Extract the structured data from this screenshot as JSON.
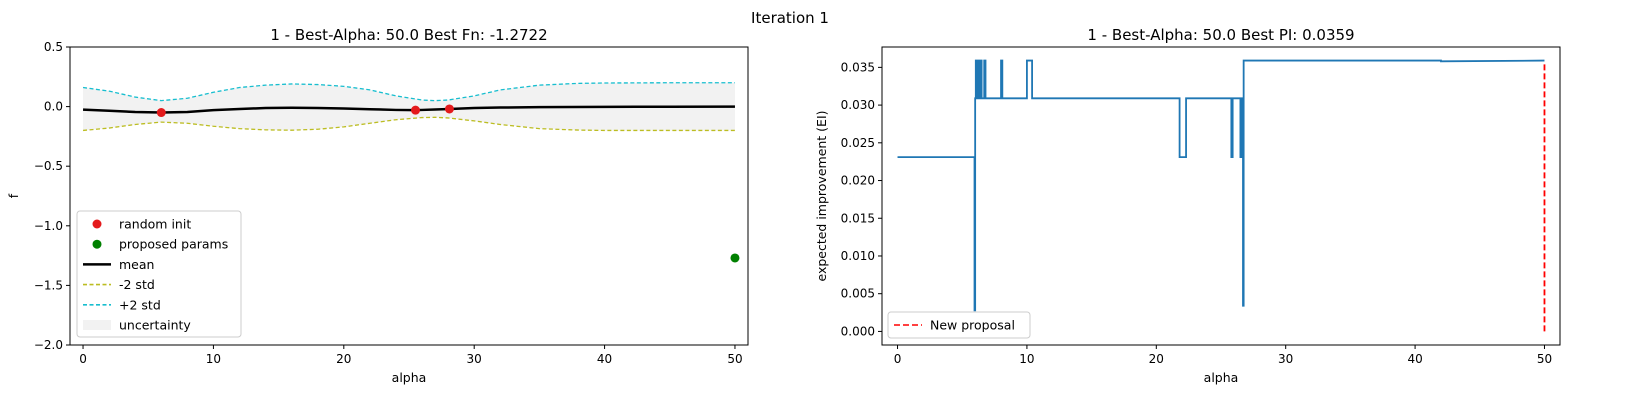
{
  "figure": {
    "suptitle": "Iteration 1"
  },
  "chart_data": [
    {
      "type": "line",
      "title": "1 - Best-Alpha: 50.0 Best Fn: -1.2722",
      "xlabel": "alpha",
      "ylabel": "f",
      "xlim": [
        -1,
        51
      ],
      "ylim": [
        -2.0,
        0.5
      ],
      "xticks": [
        0,
        10,
        20,
        30,
        40,
        50
      ],
      "yticks": [
        -2.0,
        -1.5,
        -1.0,
        -0.5,
        0.0,
        0.5
      ],
      "xtick_labels": [
        "0",
        "10",
        "20",
        "30",
        "40",
        "50"
      ],
      "ytick_labels": [
        "−2.0",
        "−1.5",
        "−1.0",
        "−0.5",
        "0.0",
        "0.5"
      ],
      "legend_position": "lower-left",
      "series": [
        {
          "name": "random init",
          "kind": "scatter",
          "color": "#e41a1c",
          "x": [
            6.0,
            25.5,
            28.1
          ],
          "y": [
            -0.05,
            -0.03,
            -0.02
          ]
        },
        {
          "name": "proposed params",
          "kind": "scatter",
          "color": "#008000",
          "x": [
            50.0
          ],
          "y": [
            -1.27
          ]
        },
        {
          "name": "mean",
          "kind": "line",
          "color": "#000000",
          "x": [
            0,
            2,
            4,
            6,
            8,
            10,
            12,
            14,
            16,
            18,
            20,
            22,
            24,
            25.5,
            26,
            27,
            28.1,
            30,
            32,
            35,
            40,
            45,
            50
          ],
          "y": [
            -0.025,
            -0.035,
            -0.045,
            -0.05,
            -0.045,
            -0.03,
            -0.02,
            -0.012,
            -0.01,
            -0.012,
            -0.016,
            -0.022,
            -0.028,
            -0.03,
            -0.028,
            -0.024,
            -0.02,
            -0.012,
            -0.008,
            -0.004,
            -0.002,
            -0.001,
            0.0
          ]
        },
        {
          "name": "-2 std",
          "kind": "line",
          "style": "dashed",
          "color": "#bcbd22",
          "x": [
            0,
            2,
            4,
            6,
            8,
            10,
            12,
            14,
            16,
            18,
            20,
            22,
            24,
            26,
            27,
            28,
            30,
            32,
            35,
            38,
            40,
            45,
            50
          ],
          "y": [
            -0.2,
            -0.18,
            -0.15,
            -0.13,
            -0.14,
            -0.165,
            -0.185,
            -0.195,
            -0.198,
            -0.19,
            -0.17,
            -0.14,
            -0.11,
            -0.092,
            -0.09,
            -0.095,
            -0.12,
            -0.15,
            -0.185,
            -0.197,
            -0.2,
            -0.2,
            -0.2
          ]
        },
        {
          "name": "+2 std",
          "kind": "line",
          "style": "dashed",
          "color": "#17becf",
          "x": [
            0,
            2,
            4,
            6,
            8,
            10,
            12,
            14,
            16,
            18,
            20,
            22,
            24,
            26,
            27,
            28,
            30,
            32,
            35,
            38,
            40,
            45,
            50
          ],
          "y": [
            0.16,
            0.13,
            0.08,
            0.05,
            0.07,
            0.12,
            0.16,
            0.18,
            0.19,
            0.185,
            0.17,
            0.14,
            0.09,
            0.055,
            0.05,
            0.055,
            0.09,
            0.14,
            0.18,
            0.195,
            0.198,
            0.2,
            0.2
          ]
        },
        {
          "name": "uncertainty",
          "kind": "band",
          "color": "#f2f2f2",
          "lower_series": "-2 std",
          "upper_series": "+2 std"
        }
      ]
    },
    {
      "type": "line",
      "title": "1 - Best-Alpha: 50.0 Best PI: 0.0359",
      "xlabel": "alpha",
      "ylabel": "expected improvement (EI)",
      "xlim": [
        -1.2,
        51.2
      ],
      "ylim": [
        -0.0018,
        0.0377
      ],
      "xticks": [
        0,
        10,
        20,
        30,
        40,
        50
      ],
      "yticks": [
        0.0,
        0.005,
        0.01,
        0.015,
        0.02,
        0.025,
        0.03,
        0.035
      ],
      "xtick_labels": [
        "0",
        "10",
        "20",
        "30",
        "40",
        "50"
      ],
      "ytick_labels": [
        "0.000",
        "0.005",
        "0.010",
        "0.015",
        "0.020",
        "0.025",
        "0.030",
        "0.035"
      ],
      "legend_position": "lower-left",
      "series": [
        {
          "name": "",
          "kind": "step",
          "color": "#1f77b4",
          "x": [
            0,
            5.95,
            5.95,
            6.0,
            6.0,
            6.05,
            6.05,
            6.1,
            6.1,
            6.2,
            6.2,
            6.3,
            6.3,
            6.4,
            6.4,
            6.5,
            6.5,
            6.7,
            6.7,
            6.8,
            6.8,
            7.0,
            7.0,
            8.0,
            8.0,
            8.1,
            8.1,
            10.0,
            10.0,
            10.4,
            10.4,
            21.8,
            21.8,
            22.3,
            22.3,
            25.8,
            25.8,
            25.9,
            25.9,
            26.5,
            26.5,
            26.6,
            26.6,
            26.7,
            26.7,
            26.75,
            26.75,
            42.0,
            42.0,
            50.0
          ],
          "y": [
            0.0231,
            0.0231,
            0.0028,
            0.0028,
            0.0309,
            0.0309,
            0.0359,
            0.0359,
            0.0309,
            0.0309,
            0.0359,
            0.0359,
            0.0309,
            0.0309,
            0.0359,
            0.0359,
            0.0309,
            0.0309,
            0.0359,
            0.0359,
            0.0309,
            0.0309,
            0.0309,
            0.0309,
            0.0359,
            0.0359,
            0.0309,
            0.0309,
            0.0359,
            0.0359,
            0.0309,
            0.0309,
            0.0231,
            0.0231,
            0.0309,
            0.0309,
            0.0231,
            0.0231,
            0.0309,
            0.0309,
            0.0231,
            0.0231,
            0.0309,
            0.0309,
            0.0034,
            0.0034,
            0.0359,
            0.0359,
            0.0358,
            0.0359
          ]
        },
        {
          "name": "New proposal",
          "kind": "vline",
          "style": "dashed",
          "color": "#ff0000",
          "x": 50.0,
          "y": [
            0.0,
            0.0355
          ]
        }
      ]
    }
  ]
}
